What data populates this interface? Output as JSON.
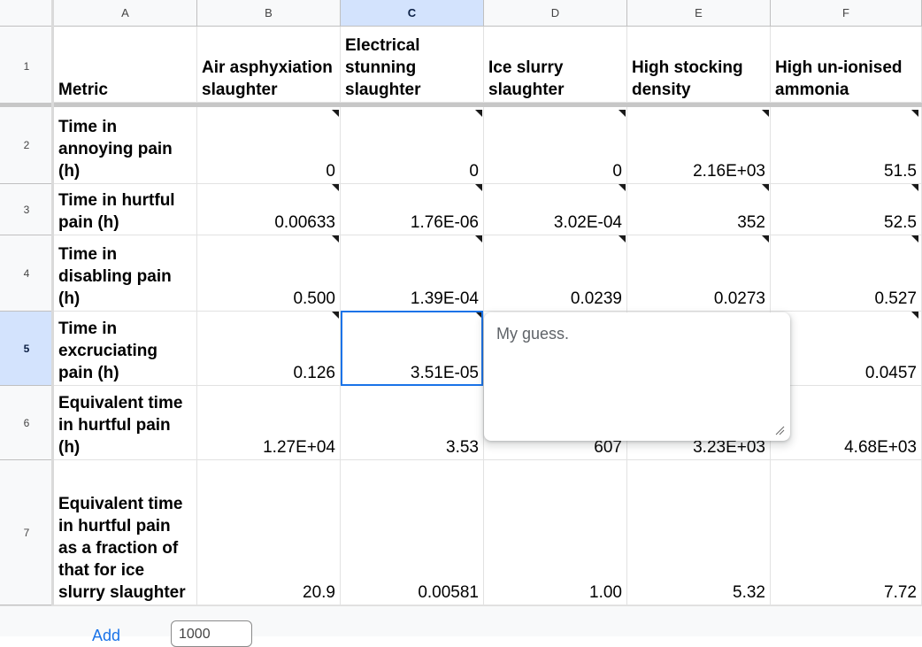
{
  "columns": [
    "A",
    "B",
    "C",
    "D",
    "E",
    "F"
  ],
  "rows": [
    "1",
    "2",
    "3",
    "4",
    "5",
    "6",
    "7"
  ],
  "header": [
    "Metric",
    "Air asphyxiation slaughter",
    "Electrical stunning slaughter",
    "Ice slurry slaughter",
    "High stocking density",
    "High un-ionised ammonia"
  ],
  "data": [
    [
      "Time in annoying pain (h)",
      "0",
      "0",
      "0",
      "2.16E+03",
      "51.5"
    ],
    [
      "Time in hurtful pain (h)",
      "0.00633",
      "1.76E-06",
      "3.02E-04",
      "352",
      "52.5"
    ],
    [
      "Time in disabling pain (h)",
      "0.500",
      "1.39E-04",
      "0.0239",
      "0.0273",
      "0.527"
    ],
    [
      "Time in excruciating pain (h)",
      "0.126",
      "3.51E-05",
      "",
      "",
      "0.0457"
    ],
    [
      "Equivalent time in hurtful pain (h)",
      "1.27E+04",
      "3.53",
      "607",
      "3.23E+03",
      "4.68E+03"
    ],
    [
      "Equivalent time in hurtful pain as a fraction of that for ice slurry slaughter",
      "20.9",
      "0.00581",
      "1.00",
      "5.32",
      "7.72"
    ]
  ],
  "selected_cell": "C5",
  "comment": {
    "text": "My guess."
  },
  "footer": {
    "add_label": "Add",
    "rows_value": "1000"
  },
  "colors": {
    "selection": "#1a73e8",
    "header_selected": "#d3e3fd"
  }
}
